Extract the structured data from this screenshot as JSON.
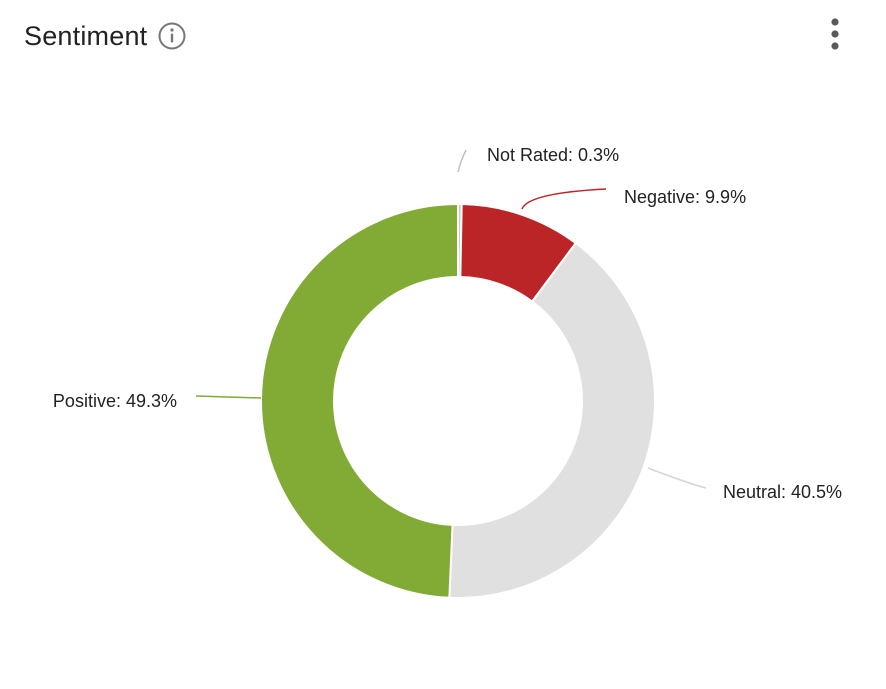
{
  "header": {
    "title": "Sentiment",
    "info_icon": "info-circle-icon",
    "menu_icon": "more-vertical-icon"
  },
  "chart_data": {
    "type": "pie",
    "variant": "donut",
    "labels": [
      "Not Rated",
      "Negative",
      "Neutral",
      "Positive"
    ],
    "values": [
      0.3,
      9.9,
      40.5,
      49.3
    ],
    "unit": "%",
    "colors": [
      "#c8c8c8",
      "#bb2528",
      "#e0e0e0",
      "#81ab35"
    ],
    "data_labels": [
      "Not Rated: 0.3%",
      "Negative: 9.9%",
      "Neutral: 40.5%",
      "Positive: 49.3%"
    ],
    "start": "12 o'clock",
    "direction": "clockwise"
  }
}
